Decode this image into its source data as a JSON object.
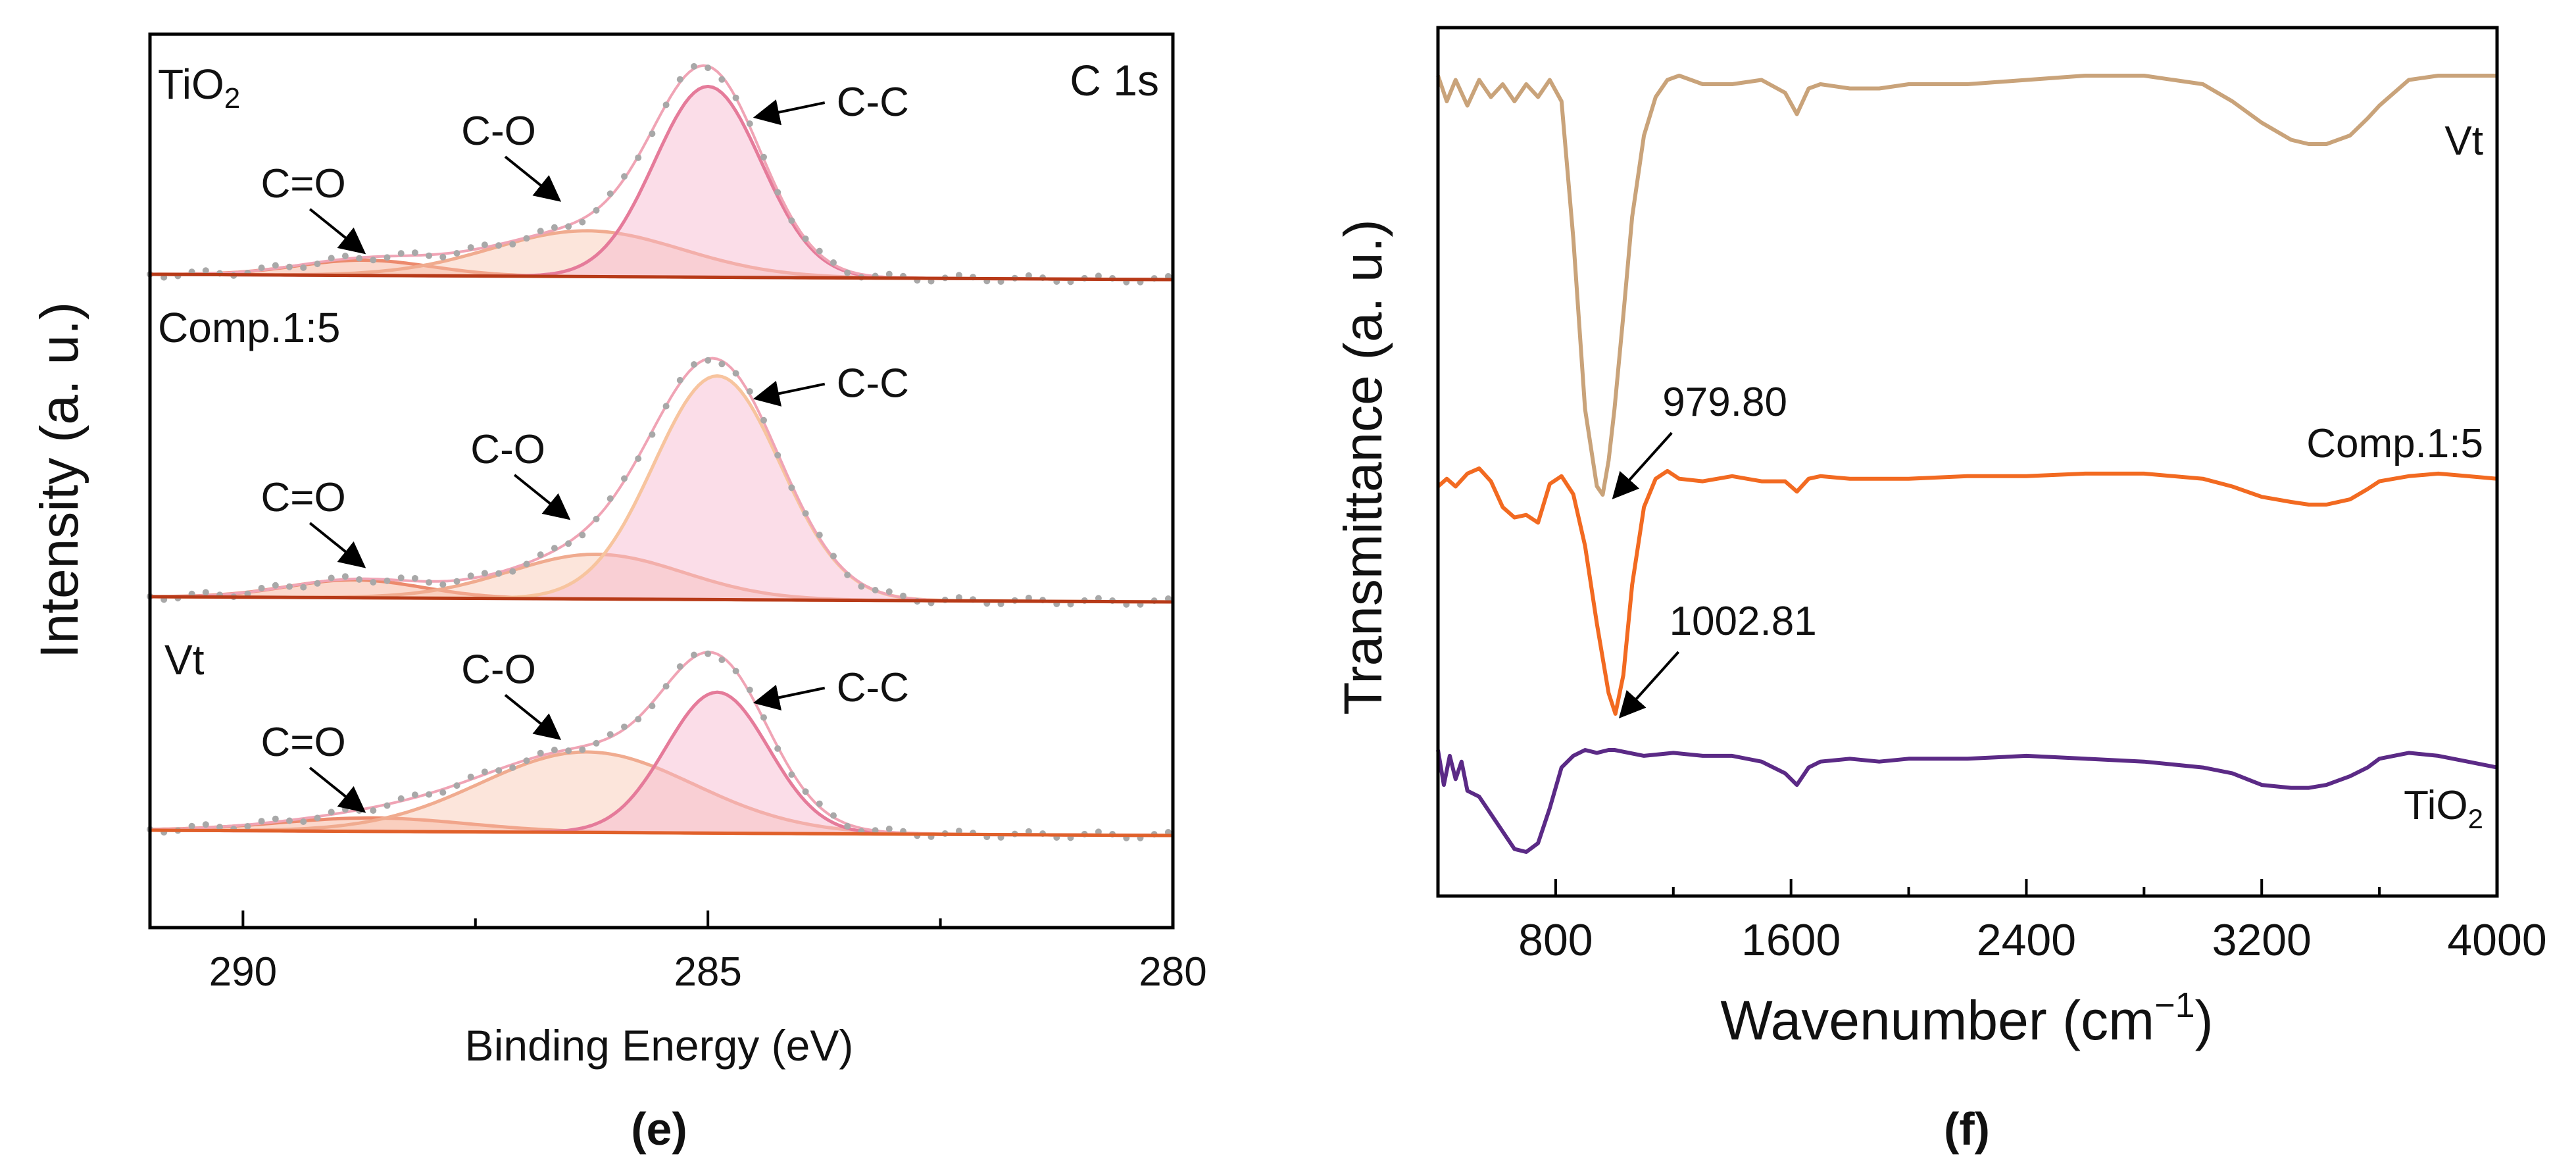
{
  "figure": {
    "caption_e": "(e)",
    "caption_f": "(f)"
  },
  "panels": [
    {
      "type": "line",
      "title": "C 1s",
      "xlabel": "Binding Energy (eV)",
      "ylabel": "Intensity (a. u.)",
      "xlim": [
        291,
        280
      ],
      "xticks": [
        290,
        285,
        280
      ],
      "minor_xticks": [
        287.5,
        282.5
      ],
      "offset_series": [
        {
          "name": "TiO2",
          "label_base": "TiO",
          "label_sub": "2",
          "baseline_slope_color": "#b73a18",
          "components": [
            {
              "name": "C-C",
              "center": 285.0,
              "height": 1.0,
              "fwhm": 1.35,
              "color": "#e57b9a",
              "fill": "#f7b4cc"
            },
            {
              "name": "C-O",
              "center": 286.3,
              "height": 0.24,
              "fwhm": 2.4,
              "color": "#f0ab8f",
              "fill": "#f9c6b0"
            },
            {
              "name": "C=O",
              "center": 288.7,
              "height": 0.08,
              "fwhm": 1.7,
              "color": "#ec8a6d",
              "fill": "#f7a88e"
            }
          ],
          "annotations": [
            {
              "text": "C-C",
              "x": 284.6,
              "y": 0.84
            },
            {
              "text": "C-O",
              "x": 286.6,
              "y": 0.4
            },
            {
              "text": "C=O",
              "x": 288.7,
              "y": 0.12
            }
          ]
        },
        {
          "name": "Comp.1:5",
          "label_base": "Comp.1:5",
          "label_sub": "",
          "baseline_slope_color": "#b73a18",
          "components": [
            {
              "name": "C-C",
              "center": 284.9,
              "height": 1.0,
              "fwhm": 1.6,
              "color": "#f7c49e",
              "fill": "#f7b4cc"
            },
            {
              "name": "C-O",
              "center": 286.2,
              "height": 0.2,
              "fwhm": 2.2,
              "color": "#f0ab8f",
              "fill": "#f9c6b0"
            },
            {
              "name": "C=O",
              "center": 288.8,
              "height": 0.08,
              "fwhm": 1.7,
              "color": "#ec8a6d",
              "fill": "#f7a88e"
            }
          ],
          "annotations": [
            {
              "text": "C-C",
              "x": 284.6,
              "y": 0.9
            },
            {
              "text": "C-O",
              "x": 286.5,
              "y": 0.36
            },
            {
              "text": "C=O",
              "x": 288.7,
              "y": 0.14
            }
          ]
        },
        {
          "name": "Vt",
          "label_base": "Vt",
          "label_sub": "",
          "baseline_slope_color": "#e0602a",
          "components": [
            {
              "name": "C-C",
              "center": 284.9,
              "height": 0.84,
              "fwhm": 1.3,
              "color": "#e57b9a",
              "fill": "#f7b4cc"
            },
            {
              "name": "C-O",
              "center": 286.3,
              "height": 0.48,
              "fwhm": 2.7,
              "color": "#f0ab8f",
              "fill": "#f9c6b0"
            },
            {
              "name": "C=O",
              "center": 288.6,
              "height": 0.08,
              "fwhm": 2.4,
              "color": "#ec8a6d",
              "fill": "#f7a88e"
            }
          ],
          "annotations": [
            {
              "text": "C-C",
              "x": 284.6,
              "y": 0.78
            },
            {
              "text": "C-O",
              "x": 286.6,
              "y": 0.56
            },
            {
              "text": "C=O",
              "x": 288.7,
              "y": 0.12
            }
          ]
        }
      ]
    },
    {
      "type": "line",
      "xlabel_base": "Wavenumber (cm",
      "xlabel_sup": "−1",
      "xlabel_end": ")",
      "ylabel": "Transmittance (a. u.)",
      "xlim": [
        400,
        4000
      ],
      "xticks": [
        800,
        1600,
        2400,
        3200,
        4000
      ],
      "minor_xticks": [
        1200,
        2000,
        2800,
        3600
      ],
      "series": [
        {
          "name": "Vt",
          "label_base": "Vt",
          "label_sub": "",
          "color": "#c9a37a",
          "x": [
            400,
            430,
            460,
            500,
            540,
            580,
            620,
            660,
            700,
            740,
            780,
            820,
            860,
            900,
            940,
            960,
            980,
            1000,
            1030,
            1060,
            1100,
            1140,
            1180,
            1220,
            1300,
            1400,
            1500,
            1580,
            1620,
            1660,
            1700,
            1800,
            1900,
            2000,
            2200,
            2400,
            2600,
            2800,
            3000,
            3100,
            3200,
            3300,
            3360,
            3420,
            3500,
            3560,
            3600,
            3700,
            3800,
            3900,
            4000
          ],
          "y": [
            98,
            92,
            97,
            91,
            97,
            93,
            96,
            92,
            96,
            93,
            97,
            92,
            60,
            20,
            2,
            0,
            8,
            20,
            42,
            65,
            84,
            93,
            97,
            98,
            96,
            96,
            97,
            94,
            89,
            95,
            96,
            95,
            95,
            96,
            96,
            97,
            98,
            98,
            96,
            92,
            87,
            83,
            82,
            82,
            84,
            88,
            91,
            97,
            98,
            98,
            98
          ]
        },
        {
          "name": "Comp.1:5",
          "label_base": "Comp.1:5",
          "label_sub": "",
          "color": "#f26a21",
          "x": [
            400,
            430,
            460,
            500,
            540,
            580,
            620,
            660,
            700,
            740,
            780,
            820,
            860,
            900,
            940,
            980,
            1003,
            1030,
            1060,
            1100,
            1140,
            1180,
            1220,
            1300,
            1400,
            1500,
            1580,
            1620,
            1660,
            1700,
            1800,
            1900,
            2000,
            2200,
            2400,
            2600,
            2800,
            3000,
            3100,
            3200,
            3300,
            3360,
            3420,
            3500,
            3560,
            3600,
            3700,
            3800,
            3900,
            4000
          ],
          "y": [
            88,
            91,
            88,
            93,
            95,
            90,
            80,
            76,
            77,
            74,
            89,
            92,
            85,
            65,
            35,
            8,
            0,
            15,
            50,
            80,
            91,
            94,
            91,
            90,
            92,
            90,
            90,
            86,
            91,
            92,
            91,
            91,
            91,
            92,
            92,
            93,
            93,
            91,
            88,
            84,
            82,
            81,
            81,
            83,
            87,
            90,
            92,
            93,
            92,
            91
          ]
        },
        {
          "name": "TiO2",
          "label_base": "TiO",
          "label_sub": "2",
          "color": "#5b2a86",
          "x": [
            400,
            420,
            440,
            460,
            480,
            500,
            540,
            580,
            620,
            660,
            700,
            740,
            780,
            820,
            860,
            900,
            940,
            980,
            1000,
            1100,
            1200,
            1300,
            1400,
            1500,
            1580,
            1620,
            1660,
            1700,
            1800,
            1900,
            2000,
            2200,
            2400,
            2600,
            2800,
            3000,
            3100,
            3200,
            3300,
            3360,
            3420,
            3500,
            3560,
            3600,
            3700,
            3800,
            3900,
            4000
          ],
          "y": [
            92,
            80,
            90,
            82,
            88,
            78,
            76,
            70,
            64,
            58,
            57,
            60,
            72,
            86,
            90,
            92,
            91,
            92,
            92,
            90,
            91,
            90,
            90,
            88,
            84,
            80,
            86,
            88,
            89,
            88,
            89,
            89,
            90,
            89,
            88,
            86,
            84,
            80,
            79,
            79,
            80,
            83,
            86,
            89,
            91,
            90,
            88,
            86
          ]
        }
      ],
      "peak_labels": [
        {
          "text": "979.80",
          "series": "Vt",
          "x": 979.8
        },
        {
          "text": "1002.81",
          "series": "Comp.1:5",
          "x": 1002.81
        }
      ]
    }
  ]
}
